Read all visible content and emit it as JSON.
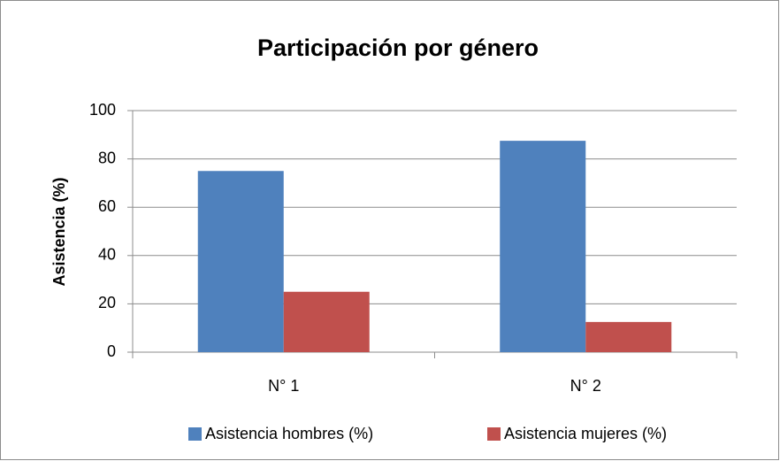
{
  "chart_data": {
    "type": "bar",
    "title": "Participación por género",
    "y_label": "Asistencia (%)",
    "categories": [
      "N° 1",
      "N° 2"
    ],
    "series": [
      {
        "name": "Asistencia hombres (%)",
        "color": "#4f81bd",
        "values": [
          75,
          87.5
        ]
      },
      {
        "name": "Asistencia mujeres (%)",
        "color": "#c0504d",
        "values": [
          25,
          12.5
        ]
      }
    ],
    "ylim": [
      0,
      100
    ],
    "yticks": [
      0,
      20,
      40,
      60,
      80,
      100
    ],
    "grid": true,
    "legend": "bottom"
  }
}
